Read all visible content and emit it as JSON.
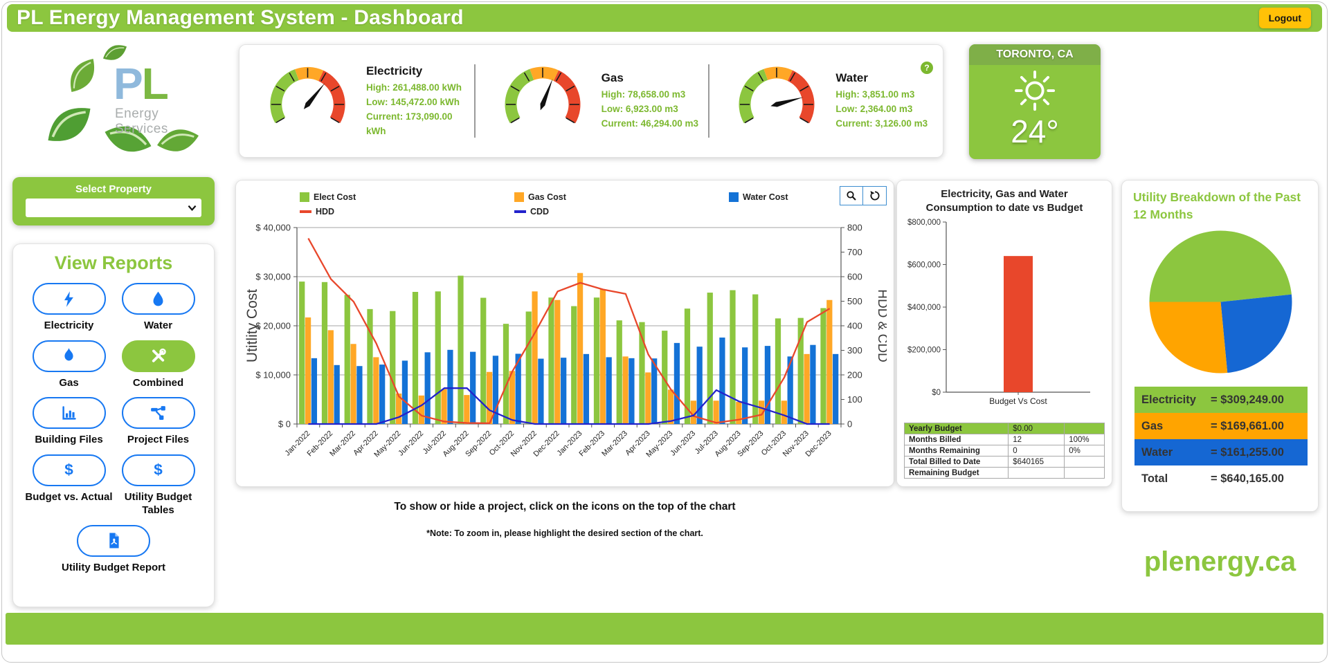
{
  "header": {
    "title": "PL Energy Management System - Dashboard",
    "logout_label": "Logout"
  },
  "logo": {
    "initials_p": "P",
    "initials_l": "L",
    "subtext": "Energy Services"
  },
  "gauges": {
    "help_glyph": "?",
    "items": [
      {
        "id": "electricity",
        "label": "Electricity",
        "high_display": "High: 261,488.00 kWh",
        "low_display": "Low: 145,472.00 kWh",
        "current_display": "Current: 173,090.00 kWh",
        "high": 261488,
        "low": 145472,
        "current": 173090
      },
      {
        "id": "gas",
        "label": "Gas",
        "high_display": "High: 78,658.00 m3",
        "low_display": "Low: 6,923.00 m3",
        "current_display": "Current: 46,294.00 m3",
        "high": 78658,
        "low": 6923,
        "current": 46294
      },
      {
        "id": "water",
        "label": "Water",
        "high_display": "High: 3,851.00 m3",
        "low_display": "Low: 2,364.00 m3",
        "current_display": "Current: 3,126.00 m3",
        "high": 3851,
        "low": 2364,
        "current": 3126
      }
    ],
    "band_colors": {
      "low": "#8CC63F",
      "mid": "#FFA726",
      "high": "#E8472B"
    }
  },
  "weather": {
    "location": "TORONTO, CA",
    "temperature": "24°"
  },
  "sidebar": {
    "select_property_label": "Select Property",
    "view_reports_title": "View Reports",
    "buttons": [
      {
        "label": "Electricity",
        "icon": "lightning-icon",
        "active": false
      },
      {
        "label": "Water",
        "icon": "water-drop-icon",
        "active": false
      },
      {
        "label": "Gas",
        "icon": "flame-icon",
        "active": false
      },
      {
        "label": "Combined",
        "icon": "tools-icon",
        "active": true
      },
      {
        "label": "Building Files",
        "icon": "bar-chart-icon",
        "active": false
      },
      {
        "label": "Project Files",
        "icon": "sitemap-icon",
        "active": false
      },
      {
        "label": "Budget vs. Actual",
        "icon": "dollar-icon",
        "active": false
      },
      {
        "label": "Utility Budget Tables",
        "icon": "dollar-icon",
        "active": false
      },
      {
        "label": "Utility Budget Report",
        "icon": "pdf-icon",
        "active": false
      }
    ]
  },
  "chart_data": [
    {
      "id": "utility-cost-by-month",
      "type": "bar",
      "title": "",
      "categories": [
        "Jan-2022",
        "Feb-2022",
        "Mar-2022",
        "Apr-2022",
        "May-2022",
        "Jun-2022",
        "Jul-2022",
        "Aug-2022",
        "Sep-2022",
        "Oct-2022",
        "Nov-2022",
        "Dec-2022",
        "Jan-2023",
        "Feb-2023",
        "Mar-2023",
        "Apr-2023",
        "May-2023",
        "Jun-2023",
        "Jul-2023",
        "Aug-2023",
        "Sep-2023",
        "Oct-2023",
        "Nov-2023",
        "Dec-2023"
      ],
      "series": [
        {
          "name": "Elect Cost",
          "type": "bar",
          "axis": "left",
          "color": "#8CC63F",
          "values": [
            29000,
            28900,
            26300,
            23400,
            23000,
            26900,
            27000,
            30200,
            25700,
            20400,
            22900,
            25750,
            24000,
            25750,
            21100,
            20750,
            19000,
            23500,
            26750,
            27250,
            26400,
            21500,
            21600,
            23600
          ]
        },
        {
          "name": "Gas Cost",
          "type": "bar",
          "axis": "left",
          "color": "#FFA726",
          "values": [
            21700,
            19100,
            16300,
            13600,
            6200,
            5800,
            7100,
            5900,
            10600,
            10800,
            27000,
            25250,
            30750,
            27400,
            13750,
            10500,
            7000,
            4750,
            4750,
            4500,
            4750,
            4750,
            14250,
            25250
          ]
        },
        {
          "name": "Water Cost",
          "type": "bar",
          "axis": "left",
          "color": "#1472D6",
          "values": [
            13400,
            12000,
            11800,
            12100,
            12900,
            14600,
            15100,
            14700,
            13900,
            14300,
            13300,
            13500,
            14250,
            13600,
            13400,
            13350,
            16500,
            15750,
            17600,
            15600,
            15900,
            13750,
            16100,
            14250
          ]
        },
        {
          "name": "HDD",
          "type": "line",
          "axis": "right",
          "color": "#E8472B",
          "values": [
            756,
            590,
            498,
            328,
            112,
            34,
            10,
            4,
            3,
            214,
            372,
            540,
            575,
            548,
            530,
            283,
            140,
            32,
            5,
            18,
            38,
            190,
            415,
            470
          ]
        },
        {
          "name": "CDD",
          "type": "line",
          "axis": "right",
          "color": "#2222CC",
          "values": [
            0,
            0,
            0,
            0,
            28,
            76,
            146,
            146,
            56,
            16,
            0,
            0,
            0,
            0,
            0,
            0,
            12,
            35,
            138,
            92,
            65,
            35,
            0,
            0
          ]
        }
      ],
      "ylabel_left": "Utitlity Cost",
      "ylabel_right": "HDD & CDD",
      "ylim_left": [
        0,
        40000
      ],
      "ylim_right": [
        0,
        800
      ],
      "left_tick_labels": [
        "$ 0",
        "$ 10,000",
        "$ 20,000",
        "$ 30,000",
        "$ 40,000"
      ],
      "right_tick_step": 100,
      "grid": true,
      "legend_position": "top"
    },
    {
      "id": "budget-vs-cost",
      "type": "bar",
      "title": "Electricity, Gas and Water Consumption to date vs Budget",
      "categories": [
        "Budget Vs Cost"
      ],
      "values": [
        640165
      ],
      "bar_color": "#E8472B",
      "ylim": [
        0,
        800000
      ],
      "ytick_labels": [
        "$0",
        "$200,000",
        "$400,000",
        "$600,000",
        "$800,000"
      ]
    },
    {
      "id": "utility-breakdown-pie",
      "type": "pie",
      "title": "Utility Breakdown of the Past 12 Months",
      "labels": [
        "Electricity",
        "Gas",
        "Water"
      ],
      "values": [
        309249,
        169661,
        161255
      ],
      "colors": [
        "#8CC63F",
        "#FFA400",
        "#1567D3"
      ],
      "total": 640165,
      "start_angle_deg": 180
    }
  ],
  "budget_table": {
    "rows": [
      {
        "label": "Yearly Budget",
        "value": "$0.00",
        "pct": "",
        "header": true
      },
      {
        "label": "Months Billed",
        "value": "12",
        "pct": "100%",
        "header": false
      },
      {
        "label": "Months Remaining",
        "value": "0",
        "pct": "0%",
        "header": false
      },
      {
        "label": "Total Billed to Date",
        "value": "$640165",
        "pct": "",
        "header": false
      },
      {
        "label": "Remaining Budget",
        "value": "",
        "pct": "",
        "header": false
      }
    ]
  },
  "breakdown": {
    "title": "Utility Breakdown of the Past 12 Months",
    "rows": [
      {
        "label": "Electricity",
        "value_display": "= $309,249.00",
        "color": "#8CC63F"
      },
      {
        "label": "Gas",
        "value_display": "= $169,661.00",
        "color": "#FFA400"
      },
      {
        "label": "Water",
        "value_display": "= $161,255.00",
        "color": "#1567D3"
      }
    ],
    "total": {
      "label": "Total",
      "value_display": "= $640,165.00"
    }
  },
  "notes": {
    "line1": "To show or hide a project, click on the icons on the top of the chart",
    "line2": "*Note: To zoom in, please highlight the desired section of the chart."
  },
  "footer": {
    "website": "plenergy.ca"
  },
  "colors": {
    "brand_green": "#8CC63F",
    "amber": "#FFC107",
    "button_blue": "#1778F2"
  }
}
